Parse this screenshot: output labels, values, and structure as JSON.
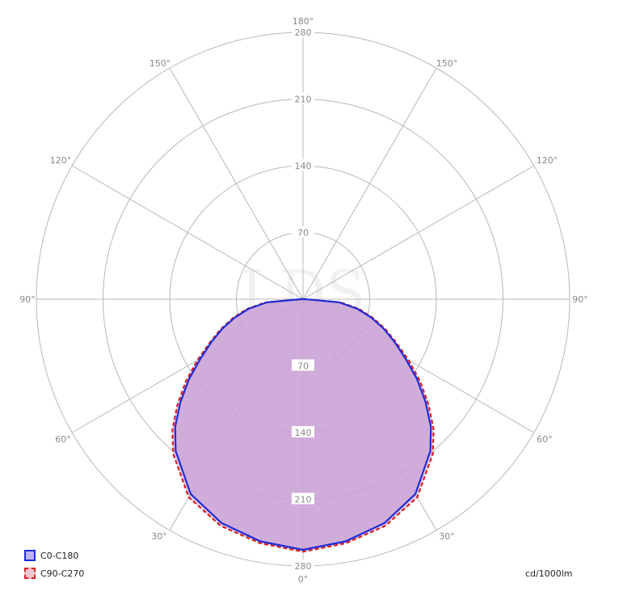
{
  "chart_data": {
    "type": "polar",
    "radial_max": 280,
    "radial_ticks": [
      70,
      140,
      210,
      280
    ],
    "angle_labels": {
      "top": "180°",
      "bottom": "0°",
      "upper_left": "150°",
      "upper_right": "150°",
      "mid_upper_left": "120°",
      "mid_upper_right": "120°",
      "left": "90°",
      "right": "90°",
      "lower_left_60": "60°",
      "lower_right_60": "60°",
      "lower_left_30": "30°",
      "lower_right_30": "30°"
    },
    "angles_deg": [
      0,
      10,
      20,
      30,
      40,
      45,
      50,
      55,
      60,
      65,
      70,
      75,
      80,
      85,
      90
    ],
    "series": [
      {
        "name": "C0-C180",
        "color": "#1f2bd6",
        "dash": false,
        "values": [
          263,
          258,
          250,
          236,
          208,
          190,
          168,
          146,
          124,
          106,
          90,
          74,
          58,
          38,
          2
        ]
      },
      {
        "name": "C90-C270",
        "color": "#d62020",
        "dash": true,
        "values": [
          265,
          260,
          253,
          240,
          212,
          194,
          172,
          150,
          128,
          108,
          92,
          76,
          60,
          40,
          2
        ]
      }
    ],
    "unit_label": "cd/1000lm",
    "watermark": "LDS"
  },
  "legend": {
    "c0_label": "C0-C180",
    "c90_label": "C90-C270"
  },
  "fill_color": "#c9a2d6"
}
